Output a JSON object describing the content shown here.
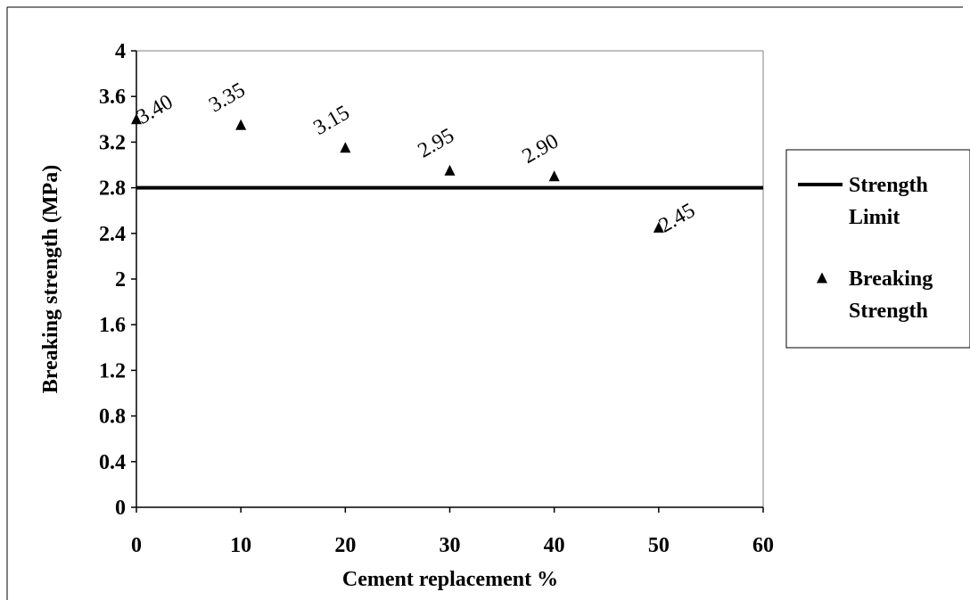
{
  "chart_data": {
    "type": "scatter",
    "title": "",
    "xlabel": "Cement replacement %",
    "ylabel": "Breaking strength (MPa)",
    "xlim": [
      0,
      60
    ],
    "ylim": [
      0,
      4
    ],
    "x_ticks": [
      0,
      10,
      20,
      30,
      40,
      50,
      60
    ],
    "y_ticks": [
      0,
      0.4,
      0.8,
      1.2,
      1.6,
      2,
      2.4,
      2.8,
      3.2,
      3.6,
      4
    ],
    "x_tick_labels": [
      "0",
      "10",
      "20",
      "30",
      "40",
      "50",
      "60"
    ],
    "y_tick_labels": [
      "0",
      "0.4",
      "0.8",
      "1.2",
      "1.6",
      "2",
      "2.4",
      "2.8",
      "3.2",
      "3.6",
      "4"
    ],
    "grid": false,
    "legend_position": "right",
    "series": [
      {
        "name": "Strength Limit",
        "kind": "line",
        "color": "#000000",
        "x": [
          0,
          60
        ],
        "y": [
          2.8,
          2.8
        ]
      },
      {
        "name": "Breaking Strength",
        "kind": "scatter",
        "marker": "triangle",
        "color": "#000000",
        "x": [
          0,
          10,
          20,
          30,
          40,
          50
        ],
        "y": [
          3.4,
          3.35,
          3.15,
          2.95,
          2.9,
          2.45
        ],
        "labels": [
          "3.40",
          "3.35",
          "3.15",
          "2.95",
          "2.90",
          "2.45"
        ]
      }
    ],
    "legend": {
      "entries": [
        {
          "lines": [
            "Strength",
            "Limit"
          ],
          "symbol": "line"
        },
        {
          "lines": [
            "Breaking",
            "Strength"
          ],
          "symbol": "triangle"
        }
      ]
    }
  }
}
